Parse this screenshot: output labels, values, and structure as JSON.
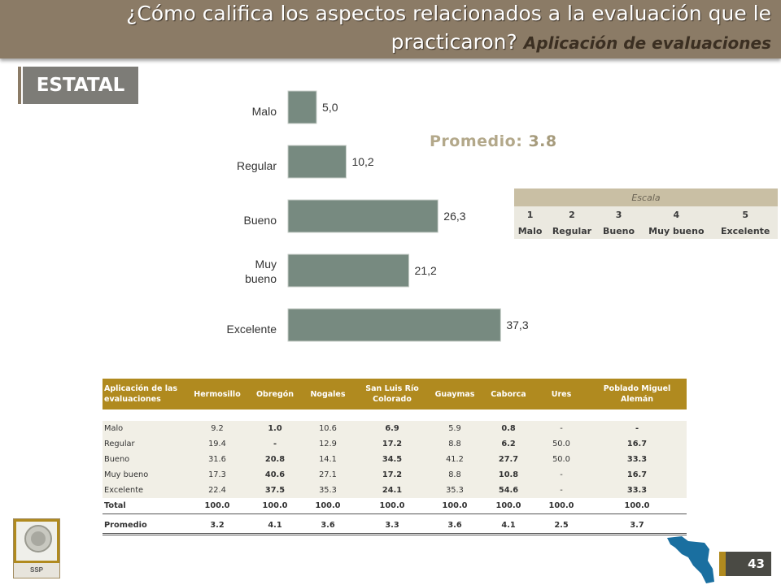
{
  "header": {
    "title_line1": "¿Cómo califica  los aspectos relacionados a la evaluación que le",
    "title_line2": "practicaron?",
    "subtitle": "Aplicación de evaluaciones"
  },
  "badge": "ESTATAL",
  "promedio": {
    "label": "Promedio:",
    "value": "3.8"
  },
  "escala": {
    "title": "Escala",
    "numbers": [
      "1",
      "2",
      "3",
      "4",
      "5"
    ],
    "labels": [
      "Malo",
      "Regular",
      "Bueno",
      "Muy bueno",
      "Excelente"
    ]
  },
  "chart_data": {
    "type": "bar",
    "orientation": "horizontal",
    "categories": [
      "Malo",
      "Regular",
      "Bueno",
      "Muy bueno",
      "Excelente"
    ],
    "values": [
      5.0,
      10.2,
      26.3,
      21.2,
      37.3
    ],
    "value_labels": [
      "5,0",
      "10,2",
      "26,3",
      "21,2",
      "37,3"
    ],
    "xlim": [
      0,
      40
    ],
    "bar_color": "#778a80",
    "grid": false,
    "legend": "none"
  },
  "table": {
    "header_label": "Aplicación de las evaluaciones",
    "columns": [
      "Hermosillo",
      "Obregón",
      "Nogales",
      "San Luis Río Colorado",
      "Guaymas",
      "Caborca",
      "Ures",
      "Poblado Miguel Alemán"
    ],
    "rows": [
      {
        "label": "Malo",
        "values": [
          "9.2",
          "1.0",
          "10.6",
          "6.9",
          "5.9",
          "0.8",
          "-",
          "-"
        ]
      },
      {
        "label": "Regular",
        "values": [
          "19.4",
          "-",
          "12.9",
          "17.2",
          "8.8",
          "6.2",
          "50.0",
          "16.7"
        ]
      },
      {
        "label": "Bueno",
        "values": [
          "31.6",
          "20.8",
          "14.1",
          "34.5",
          "41.2",
          "27.7",
          "50.0",
          "33.3"
        ]
      },
      {
        "label": "Muy bueno",
        "values": [
          "17.3",
          "40.6",
          "27.1",
          "17.2",
          "8.8",
          "10.8",
          "-",
          "16.7"
        ]
      },
      {
        "label": "Excelente",
        "values": [
          "22.4",
          "37.5",
          "35.3",
          "24.1",
          "35.3",
          "54.6",
          "-",
          "33.3"
        ]
      }
    ],
    "total": {
      "label": "Total",
      "values": [
        "100.0",
        "100.0",
        "100.0",
        "100.0",
        "100.0",
        "100.0",
        "100.0",
        "100.0"
      ]
    },
    "promedio": {
      "label": "Promedio",
      "values": [
        "3.2",
        "4.1",
        "3.6",
        "3.3",
        "3.6",
        "4.1",
        "2.5",
        "3.7"
      ]
    }
  },
  "logo": {
    "text": "SSP"
  },
  "page_number": "43",
  "colors": {
    "header_bg": "#8b7b66",
    "accent_gold": "#b08a1f",
    "bar": "#778a80"
  }
}
